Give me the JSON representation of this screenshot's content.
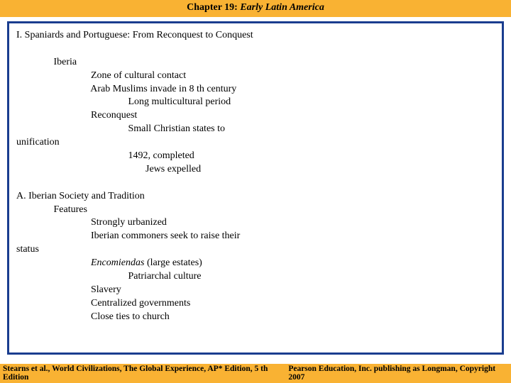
{
  "header": {
    "chapter_label": "Chapter 19:",
    "chapter_title": "Early Latin America"
  },
  "colors": {
    "header_bg": "#f9b233",
    "footer_bg": "#f9b233",
    "frame_border": "#1a3d8f",
    "text": "#000000",
    "page_bg": "#ffffff"
  },
  "content": {
    "section1_heading": "I. Spaniards and Portuguese: From Reconquest to Conquest",
    "iberia_label": "Iberia",
    "l1": "Zone of cultural contact",
    "l2": "Arab Muslims invade in 8 th century",
    "l3": "Long multicultural period",
    "l4": "Reconquest",
    "l5": "Small Christian states to",
    "l6": "unification",
    "l7": "1492, completed",
    "l8": "Jews expelled",
    "sectionA_heading": "A. Iberian Society and Tradition",
    "features_label": "Features",
    "la1": "Strongly urbanized",
    "la2": "Iberian commoners seek to raise their",
    "la3": "status",
    "la4_italic": "Encomiendas",
    "la4_rest": " (large estates)",
    "la5": "Patriarchal culture",
    "la6": "Slavery",
    "la7": "Centralized governments",
    "la8": "Close ties to church"
  },
  "footer": {
    "left": "Stearns et al., World Civilizations, The Global Experience, AP* Edition, 5 th Edition",
    "right": "Pearson Education, Inc. publishing as Longman, Copyright 2007"
  }
}
